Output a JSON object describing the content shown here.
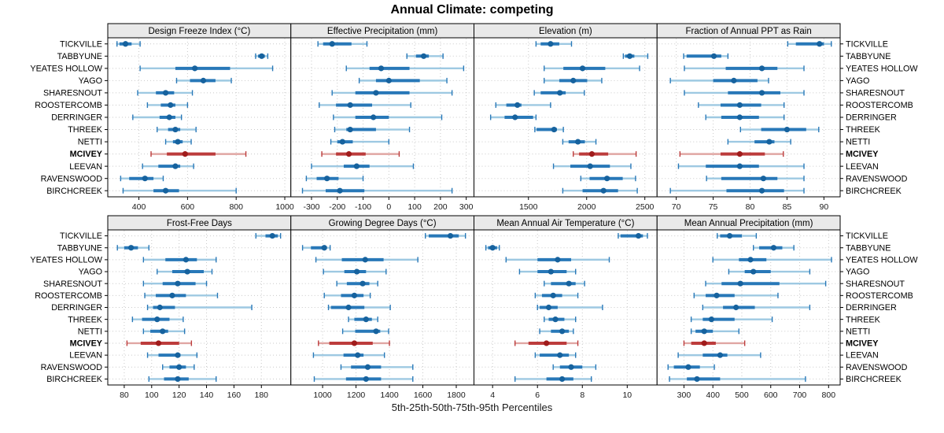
{
  "title": "Annual Climate: competing",
  "caption": "5th-25th-50th-75th-95th Percentiles",
  "colors": {
    "blue": {
      "dot": "#16629e",
      "bar": "#2878b8",
      "whisker": "#9ec9e2"
    },
    "red": {
      "dot": "#a01c1c",
      "bar": "#bc3c3c",
      "whisker": "#e0a6a3"
    },
    "strip_bg": "#e9e9e9",
    "grid": "#c9c9c9",
    "border": "#000000"
  },
  "chart_data": {
    "type": "scatter",
    "subtype": "percentile-dot-whisker (median dot, 25-75 thick bar, 5-95 whisker)",
    "title": "Annual Climate: competing",
    "xlabel": "5th-25th-50th-75th-95th Percentiles",
    "grid": "dotted",
    "percentiles": [
      5,
      25,
      50,
      75,
      95
    ],
    "highlight_site": "MCIVEY",
    "sites": [
      "TICKVILLE",
      "TABBYUNE",
      "YEATES HOLLOW",
      "YAGO",
      "SHARESNOUT",
      "ROOSTERCOMB",
      "DERRINGER",
      "THREEK",
      "NETTI",
      "MCIVEY",
      "LEEVAN",
      "RAVENSWOOD",
      "BIRCHCREEK"
    ],
    "panels": [
      {
        "title": "Design Freeze Index (°C)",
        "ticks": [
          400,
          600,
          800,
          1000
        ],
        "domain": [
          272,
          1025
        ],
        "values": [
          [
            310,
            320,
            345,
            370,
            405
          ],
          [
            880,
            890,
            905,
            918,
            930
          ],
          [
            405,
            550,
            630,
            775,
            950
          ],
          [
            555,
            610,
            665,
            715,
            780
          ],
          [
            395,
            470,
            510,
            545,
            620
          ],
          [
            435,
            490,
            530,
            550,
            600
          ],
          [
            375,
            485,
            525,
            550,
            575
          ],
          [
            475,
            520,
            550,
            570,
            635
          ],
          [
            510,
            540,
            560,
            580,
            615
          ],
          [
            450,
            515,
            590,
            715,
            840
          ],
          [
            415,
            480,
            550,
            570,
            625
          ],
          [
            325,
            360,
            425,
            460,
            500
          ],
          [
            335,
            460,
            510,
            565,
            800
          ]
        ]
      },
      {
        "title": "Effective Precipitation (mm)",
        "ticks": [
          -300,
          -200,
          -100,
          0,
          100,
          200,
          300
        ],
        "domain": [
          -380,
          330
        ],
        "values": [
          [
            -275,
            -255,
            -220,
            -145,
            -85
          ],
          [
            70,
            105,
            135,
            155,
            210
          ],
          [
            -165,
            -75,
            -30,
            80,
            290
          ],
          [
            -115,
            -50,
            0,
            120,
            225
          ],
          [
            -220,
            -130,
            -50,
            80,
            245
          ],
          [
            -270,
            -205,
            -150,
            -65,
            85
          ],
          [
            -215,
            -130,
            -60,
            0,
            205
          ],
          [
            -210,
            -165,
            -150,
            -50,
            80
          ],
          [
            -225,
            -200,
            -180,
            -140,
            0
          ],
          [
            -260,
            -205,
            -155,
            -90,
            40
          ],
          [
            -300,
            -175,
            -125,
            -75,
            95
          ],
          [
            -320,
            -280,
            -240,
            -195,
            -100
          ],
          [
            -335,
            -245,
            -190,
            -95,
            245
          ]
        ]
      },
      {
        "title": "Elevation (m)",
        "ticks": [
          1500,
          2000,
          2500
        ],
        "domain": [
          1032,
          2605
        ],
        "values": [
          [
            1565,
            1605,
            1690,
            1765,
            1870
          ],
          [
            2315,
            2330,
            2370,
            2410,
            2525
          ],
          [
            1635,
            1800,
            1965,
            2160,
            2455
          ],
          [
            1635,
            1765,
            1885,
            2005,
            2130
          ],
          [
            1550,
            1605,
            1770,
            1820,
            1980
          ],
          [
            1220,
            1310,
            1405,
            1440,
            1690
          ],
          [
            1175,
            1295,
            1385,
            1540,
            1565
          ],
          [
            1555,
            1570,
            1720,
            1745,
            1800
          ],
          [
            1795,
            1845,
            1925,
            1985,
            2080
          ],
          [
            1885,
            1935,
            2045,
            2185,
            2425
          ],
          [
            1715,
            1860,
            2030,
            2200,
            2380
          ],
          [
            1950,
            2025,
            2175,
            2310,
            2420
          ],
          [
            1795,
            1965,
            2145,
            2270,
            2435
          ]
        ]
      },
      {
        "title": "Fraction of Annual PPT as Rain",
        "ticks": [
          70,
          75,
          80,
          85,
          90
        ],
        "domain": [
          67.4,
          92.2
        ],
        "values": [
          [
            85.1,
            86.2,
            89.4,
            90.0,
            91.0
          ],
          [
            71.0,
            71.4,
            75.1,
            76.1,
            77.0
          ],
          [
            71.1,
            76.7,
            81.6,
            83.7,
            87.3
          ],
          [
            69.2,
            75.0,
            77.8,
            81.0,
            82.5
          ],
          [
            71.1,
            77.0,
            81.6,
            84.1,
            87.3
          ],
          [
            73.0,
            76.0,
            78.6,
            81.5,
            84.6
          ],
          [
            74.0,
            76.1,
            78.6,
            81.2,
            84.6
          ],
          [
            78.7,
            81.5,
            85.0,
            87.6,
            89.3
          ],
          [
            77.0,
            80.6,
            82.6,
            83.3,
            85.5
          ],
          [
            70.5,
            76.0,
            78.6,
            82.0,
            84.5
          ],
          [
            70.3,
            74.0,
            78.6,
            81.2,
            87.3
          ],
          [
            74.1,
            76.1,
            81.8,
            83.7,
            87.3
          ],
          [
            69.2,
            76.8,
            81.6,
            84.6,
            87.3
          ]
        ]
      },
      {
        "title": "Frost-Free Days",
        "ticks": [
          80,
          100,
          120,
          140,
          160,
          180
        ],
        "domain": [
          68,
          201.5
        ],
        "values": [
          [
            176,
            183,
            188,
            192,
            194
          ],
          [
            75,
            80,
            85,
            90,
            98
          ],
          [
            94,
            110,
            125,
            133,
            147
          ],
          [
            104,
            115,
            126,
            138,
            144
          ],
          [
            94,
            108,
            119,
            132,
            140
          ],
          [
            95,
            103,
            115,
            125,
            148
          ],
          [
            97,
            101,
            106,
            117,
            173
          ],
          [
            86,
            93,
            104,
            113,
            123
          ],
          [
            94,
            99,
            108,
            112,
            124
          ],
          [
            82,
            92,
            105,
            120,
            129
          ],
          [
            97,
            105,
            119,
            121,
            133
          ],
          [
            108,
            113,
            120,
            125,
            131
          ],
          [
            98,
            109,
            119,
            127,
            147
          ]
        ]
      },
      {
        "title": "Growing Degree Days (°C)",
        "ticks": [
          1000,
          1200,
          1400,
          1600,
          1800
        ],
        "domain": [
          810,
          1906
        ],
        "values": [
          [
            1615,
            1635,
            1765,
            1815,
            1855
          ],
          [
            880,
            930,
            1010,
            1025,
            1045
          ],
          [
            960,
            1115,
            1255,
            1365,
            1570
          ],
          [
            1005,
            1130,
            1205,
            1260,
            1380
          ],
          [
            1085,
            1145,
            1240,
            1280,
            1330
          ],
          [
            1010,
            1110,
            1190,
            1245,
            1285
          ],
          [
            1035,
            1050,
            1155,
            1250,
            1405
          ],
          [
            1155,
            1190,
            1260,
            1295,
            1330
          ],
          [
            1120,
            1195,
            1320,
            1345,
            1395
          ],
          [
            975,
            1040,
            1190,
            1300,
            1400
          ],
          [
            945,
            1125,
            1210,
            1245,
            1370
          ],
          [
            1110,
            1170,
            1270,
            1350,
            1540
          ],
          [
            950,
            1140,
            1260,
            1350,
            1540
          ]
        ]
      },
      {
        "title": "Mean Annual Air Temperature (°C)",
        "ticks": [
          4,
          6,
          8,
          10
        ],
        "domain": [
          3.17,
          11.33
        ],
        "values": [
          [
            9.6,
            9.7,
            10.5,
            10.7,
            10.9
          ],
          [
            3.7,
            3.8,
            4.0,
            4.2,
            4.3
          ],
          [
            4.6,
            6.0,
            6.9,
            7.5,
            9.2
          ],
          [
            5.2,
            6.0,
            6.6,
            7.3,
            7.7
          ],
          [
            6.3,
            6.6,
            7.4,
            7.7,
            8.1
          ],
          [
            5.9,
            6.2,
            6.7,
            7.1,
            7.8
          ],
          [
            6.0,
            6.1,
            6.5,
            6.9,
            8.9
          ],
          [
            6.3,
            6.5,
            6.8,
            7.2,
            7.7
          ],
          [
            6.1,
            6.6,
            7.1,
            7.4,
            7.6
          ],
          [
            5.0,
            5.6,
            6.4,
            7.3,
            7.8
          ],
          [
            5.9,
            6.1,
            7.0,
            7.4,
            7.7
          ],
          [
            6.7,
            7.0,
            7.5,
            8.0,
            8.6
          ],
          [
            5.0,
            6.4,
            7.1,
            7.6,
            8.4
          ]
        ]
      },
      {
        "title": "Mean Annual Precipitation (mm)",
        "ticks": [
          300,
          400,
          500,
          600,
          700,
          800
        ],
        "domain": [
          207,
          840
        ],
        "values": [
          [
            415,
            425,
            458,
            500,
            550
          ],
          [
            540,
            560,
            610,
            640,
            680
          ],
          [
            400,
            490,
            530,
            585,
            810
          ],
          [
            455,
            510,
            540,
            600,
            735
          ],
          [
            375,
            430,
            495,
            630,
            790
          ],
          [
            335,
            375,
            413,
            475,
            625
          ],
          [
            365,
            435,
            480,
            545,
            735
          ],
          [
            325,
            365,
            395,
            475,
            605
          ],
          [
            325,
            340,
            370,
            400,
            490
          ],
          [
            300,
            325,
            370,
            410,
            510
          ],
          [
            280,
            365,
            425,
            450,
            565
          ],
          [
            245,
            265,
            315,
            355,
            405
          ],
          [
            250,
            310,
            345,
            425,
            720
          ]
        ]
      }
    ]
  }
}
